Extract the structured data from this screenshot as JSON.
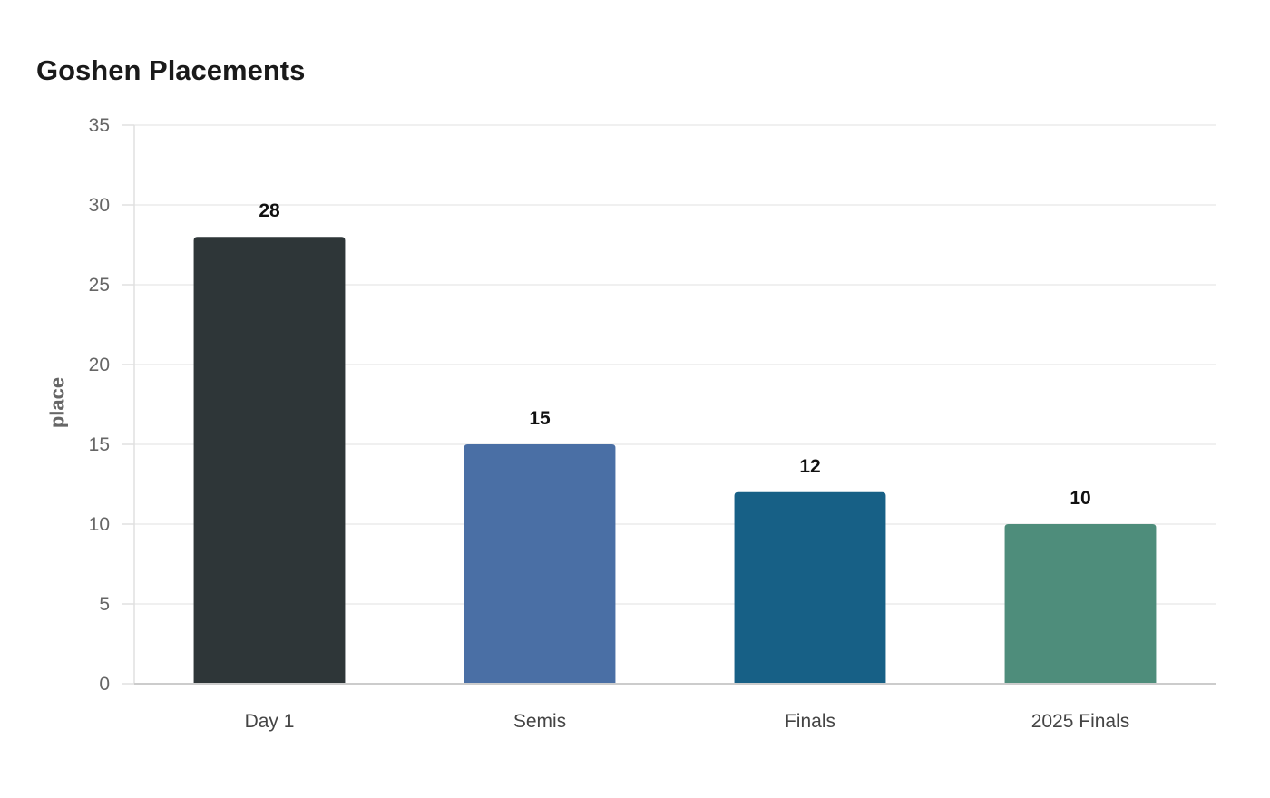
{
  "chart_data": {
    "type": "bar",
    "title": "Goshen Placements",
    "xlabel": "",
    "ylabel": "place",
    "categories": [
      "Day 1",
      "Semis",
      "Finals",
      "2025 Finals"
    ],
    "values": [
      28,
      15,
      12,
      10
    ],
    "data_labels": [
      "28",
      "15",
      "12",
      "10"
    ],
    "colors": [
      "#2e3638",
      "#4a6fa5",
      "#176086",
      "#4e8d7b"
    ],
    "ylim": [
      0,
      35
    ],
    "yticks": [
      0,
      5,
      10,
      15,
      20,
      25,
      30,
      35
    ],
    "ytick_labels": [
      "0",
      "5",
      "10",
      "15",
      "20",
      "25",
      "30",
      "35"
    ],
    "grid": true,
    "legend": "none"
  }
}
